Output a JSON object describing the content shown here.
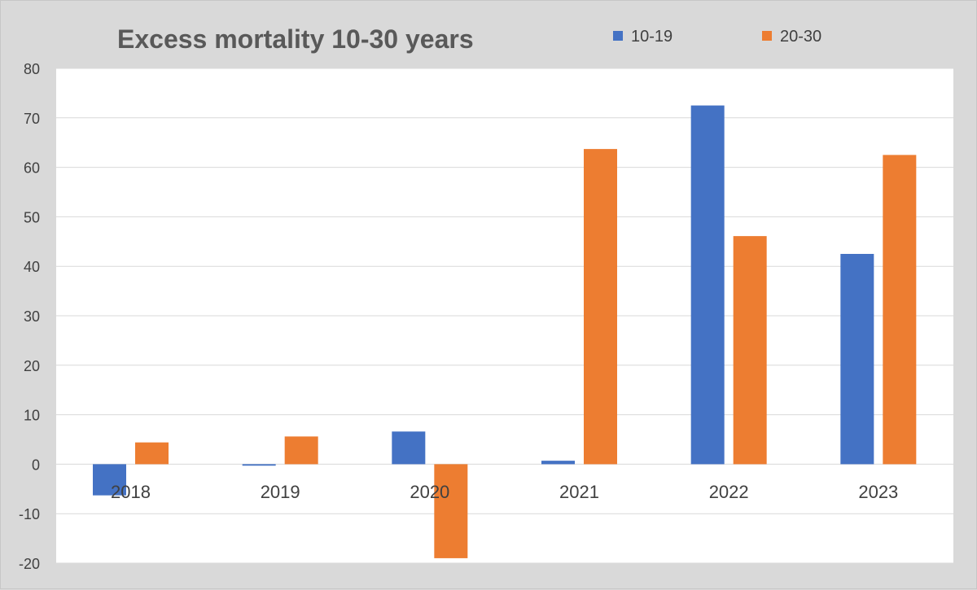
{
  "chart_data": {
    "type": "bar",
    "title": "Excess mortality 10-30 years",
    "xlabel": "",
    "ylabel": "",
    "categories": [
      "2018",
      "2019",
      "2020",
      "2021",
      "2022",
      "2023"
    ],
    "series": [
      {
        "name": "10-19",
        "color": "#4472c4",
        "values": [
          -6.3,
          -0.3,
          6.6,
          0.7,
          72.5,
          42.5
        ]
      },
      {
        "name": "20-30",
        "color": "#ed7d31",
        "values": [
          4.4,
          5.6,
          -19.0,
          63.7,
          46.1,
          62.5
        ]
      }
    ],
    "ylim": [
      -20,
      80
    ],
    "yticks": [
      "-20",
      "-10",
      "0",
      "10",
      "20",
      "30",
      "40",
      "50",
      "60",
      "70",
      "80"
    ],
    "grid": true,
    "legend": "top-right"
  }
}
